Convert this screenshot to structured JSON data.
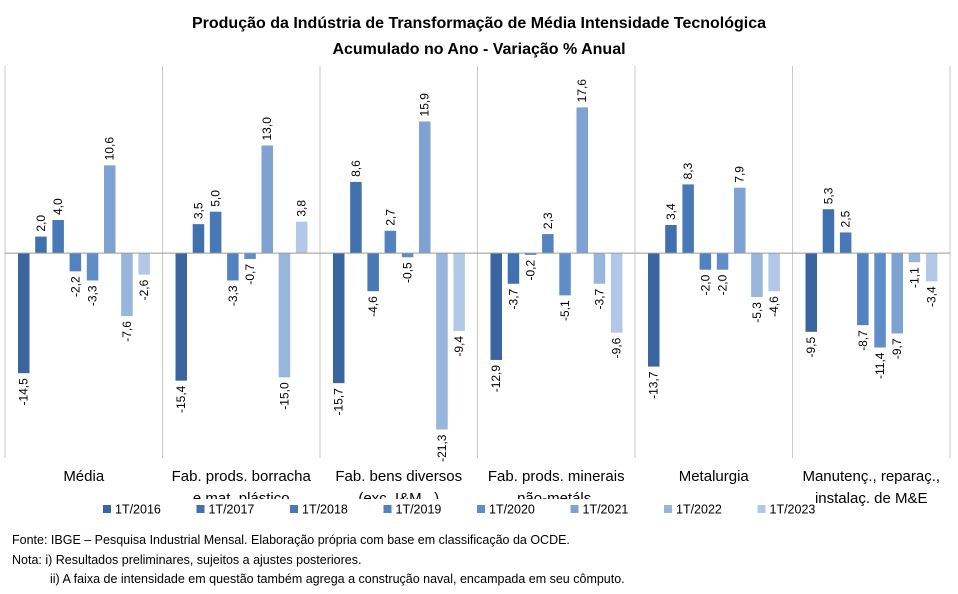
{
  "chart_data": {
    "type": "bar",
    "title": "Produção da Indústria de Transformação de Média Intensidade Tecnológica",
    "subtitle": "Acumulado no Ano - Variação % Anual",
    "categories": [
      [
        "Média"
      ],
      [
        "Fab. prods. borracha",
        "e mat. plástico"
      ],
      [
        "Fab. bens diversos",
        "(exc. I&M...)"
      ],
      [
        "Fab. prods. minerais",
        "não-metáls."
      ],
      [
        "Metalurgia"
      ],
      [
        "Manutenç., reparaç.,",
        "instalaç. de M&E"
      ]
    ],
    "series": [
      {
        "name": "1T/2016",
        "color": "#3a65a0",
        "values": [
          -14.5,
          -15.4,
          -15.7,
          -12.9,
          -13.7,
          -9.5
        ],
        "labels": [
          "-14,5",
          "-15,4",
          "-15,7",
          "-12,9",
          "-13,7",
          "-9,5"
        ]
      },
      {
        "name": "1T/2017",
        "color": "#4070ad",
        "values": [
          2.0,
          3.5,
          8.6,
          -3.7,
          3.4,
          5.3
        ],
        "labels": [
          "2,0",
          "3,5",
          "8,6",
          "-3,7",
          "3,4",
          "5,3"
        ]
      },
      {
        "name": "1T/2018",
        "color": "#4878b6",
        "values": [
          4.0,
          5.0,
          -4.6,
          -0.2,
          8.3,
          2.5
        ],
        "labels": [
          "4,0",
          "5,0",
          "-4,6",
          "-0,2",
          "8,3",
          "2,5"
        ]
      },
      {
        "name": "1T/2019",
        "color": "#5282bf",
        "values": [
          -2.2,
          -3.3,
          2.7,
          2.3,
          -2.0,
          -8.7
        ],
        "labels": [
          "-2,2",
          "-3,3",
          "2,7",
          "2,3",
          "-2,0",
          "-8,7"
        ]
      },
      {
        "name": "1T/2020",
        "color": "#5f8dc7",
        "values": [
          -3.3,
          -0.7,
          -0.5,
          -5.1,
          -2.0,
          -11.4
        ],
        "labels": [
          "-3,3",
          "-0,7",
          "-0,5",
          "-5,1",
          "-2,0",
          "-11,4"
        ]
      },
      {
        "name": "1T/2021",
        "color": "#7ea2d2",
        "values": [
          10.6,
          13.0,
          15.9,
          17.6,
          7.9,
          -9.7
        ],
        "labels": [
          "10,6",
          "13,0",
          "15,9",
          "17,6",
          "7,9",
          "-9,7"
        ]
      },
      {
        "name": "1T/2022",
        "color": "#98b5dc",
        "values": [
          -7.6,
          -15.0,
          -21.3,
          -3.7,
          -5.3,
          -1.1
        ],
        "labels": [
          "-7,6",
          "-15,0",
          "-21,3",
          "-3,7",
          "-5,3",
          "-1,1"
        ]
      },
      {
        "name": "1T/2023",
        "color": "#b2c8e6",
        "values": [
          -2.6,
          3.8,
          -9.4,
          -9.6,
          -4.6,
          -3.4
        ],
        "labels": [
          "-2,6",
          "3,8",
          "-9,4",
          "-9,6",
          "-4,6",
          "-3,4"
        ]
      }
    ],
    "ylim": [
      -24.5,
      22.6
    ],
    "grid": false,
    "legend_position": "bottom"
  },
  "footer": {
    "source": "Fonte: IBGE – Pesquisa Industrial Mensal. Elaboração própria com base em classificação da OCDE.",
    "note1": "Nota: i) Resultados preliminares, sujeitos a ajustes posteriores.",
    "note2": "ii) A faixa de intensidade em questão também agrega a construção naval, encampada em seu cômputo."
  }
}
